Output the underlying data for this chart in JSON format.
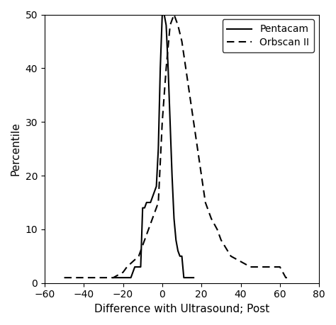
{
  "title": "",
  "xlabel": "Difference with Ultrasound; Post",
  "ylabel": "Percentile",
  "xlim": [
    -60,
    80
  ],
  "ylim": [
    0,
    50
  ],
  "xticks": [
    -60,
    -40,
    -20,
    0,
    20,
    40,
    60,
    80
  ],
  "yticks": [
    0,
    10,
    20,
    30,
    40,
    50
  ],
  "background_color": "#ffffff",
  "legend_labels": [
    "Pentacam",
    "Orbscan II"
  ],
  "legend_styles": [
    "solid",
    "dashed"
  ],
  "pentacam_x": [
    -25,
    -24,
    -22,
    -20,
    -18,
    -16,
    -14,
    -12,
    -11,
    -10,
    -9,
    -8,
    -7,
    -6,
    -5,
    -4,
    -3,
    -2,
    -1,
    0,
    1,
    2,
    3,
    4,
    5,
    6,
    7,
    8,
    9,
    10,
    11,
    12,
    13,
    14,
    15,
    16
  ],
  "pentacam_y": [
    1,
    1,
    1,
    1,
    1,
    1,
    3,
    3,
    3,
    14,
    14,
    15,
    15,
    15,
    16,
    17,
    18,
    25,
    40,
    50,
    50,
    48,
    40,
    30,
    20,
    12,
    8,
    6,
    5,
    5,
    1,
    1,
    1,
    1,
    1,
    1
  ],
  "orbscan_x": [
    -50,
    -48,
    -45,
    -40,
    -35,
    -30,
    -25,
    -20,
    -18,
    -15,
    -12,
    -10,
    -8,
    -6,
    -4,
    -2,
    0,
    2,
    4,
    6,
    8,
    10,
    12,
    14,
    16,
    18,
    20,
    22,
    25,
    28,
    30,
    35,
    40,
    45,
    50,
    55,
    60,
    63,
    65
  ],
  "orbscan_y": [
    1,
    1,
    1,
    1,
    1,
    1,
    1,
    2,
    3,
    4,
    5,
    7,
    9,
    11,
    13,
    15,
    30,
    40,
    48,
    50,
    48,
    45,
    40,
    35,
    30,
    25,
    20,
    15,
    12,
    10,
    8,
    5,
    4,
    3,
    3,
    3,
    3,
    1,
    1
  ]
}
